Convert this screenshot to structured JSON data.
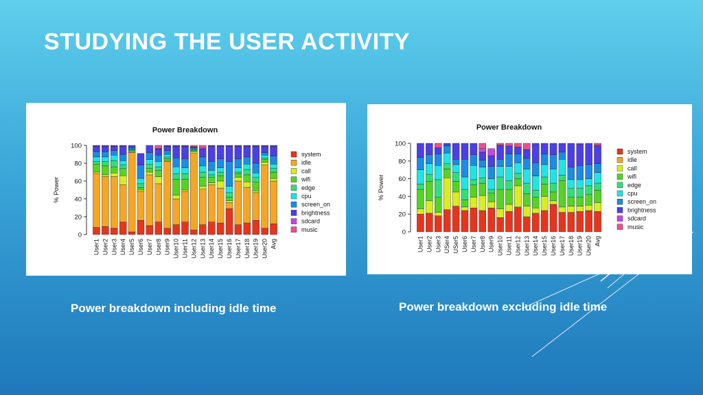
{
  "slide": {
    "title": "STUDYING THE USER ACTIVITY",
    "caption_left": "Power breakdown including idle time",
    "caption_right": "Power breakdown excluding idle time"
  },
  "colors": {
    "system": "#e8341c",
    "idle": "#f5a623",
    "call": "#d8ee1e",
    "wifi": "#55d424",
    "edge": "#2fe07a",
    "cpu": "#1ee6e6",
    "screen_on": "#1a8ce6",
    "brightness": "#4b3fe6",
    "sdcard": "#c445e6",
    "music": "#f04f8f"
  },
  "chart_data": [
    {
      "type": "bar",
      "stacked": true,
      "title": "Power Breakdown",
      "xlabel": "",
      "ylabel": "% Power",
      "ylim": [
        0,
        100
      ],
      "yticks": [
        0,
        20,
        40,
        60,
        80,
        100
      ],
      "categories": [
        "User1",
        "User2",
        "User3",
        "User4",
        "User5",
        "User6",
        "User7",
        "User8",
        "User9",
        "User10",
        "User11",
        "User12",
        "User13",
        "User14",
        "User15",
        "User16",
        "User17",
        "User18",
        "User19",
        "User20",
        "Avg"
      ],
      "legend": [
        "system",
        "idle",
        "call",
        "wifi",
        "edge",
        "cpu",
        "screen_on",
        "brightness",
        "sdcard",
        "music"
      ],
      "series": [
        {
          "name": "system",
          "values": [
            8,
            9,
            7,
            14,
            3,
            16,
            10,
            14,
            7,
            11,
            14,
            5,
            11,
            14,
            13,
            29,
            11,
            13,
            16,
            7,
            12
          ]
        },
        {
          "name": "idle",
          "values": [
            60,
            56,
            58,
            42,
            89,
            32,
            57,
            43,
            75,
            29,
            34,
            86,
            40,
            42,
            39,
            7,
            49,
            40,
            31,
            71,
            48
          ]
        },
        {
          "name": "call",
          "values": [
            2,
            2,
            4,
            10,
            1,
            2,
            3,
            8,
            1,
            4,
            2,
            2,
            3,
            2,
            8,
            2,
            4,
            6,
            2,
            3,
            3
          ]
        },
        {
          "name": "wifi",
          "values": [
            9,
            10,
            7,
            8,
            1,
            3,
            4,
            7,
            2,
            18,
            12,
            1,
            10,
            6,
            6,
            4,
            4,
            8,
            10,
            3,
            7
          ]
        },
        {
          "name": "edge",
          "values": [
            3,
            5,
            7,
            4,
            1,
            4,
            5,
            4,
            2,
            6,
            6,
            1,
            6,
            3,
            4,
            5,
            2,
            6,
            5,
            2,
            4
          ]
        },
        {
          "name": "cpu",
          "values": [
            5,
            5,
            6,
            5,
            1,
            6,
            5,
            6,
            3,
            8,
            7,
            1,
            7,
            5,
            5,
            7,
            5,
            6,
            5,
            3,
            5
          ]
        },
        {
          "name": "screen_on",
          "values": [
            6,
            6,
            5,
            7,
            1,
            15,
            8,
            7,
            4,
            10,
            10,
            1,
            10,
            10,
            10,
            28,
            10,
            8,
            11,
            3,
            9
          ]
        },
        {
          "name": "brightness",
          "values": [
            6,
            6,
            5,
            9,
            3,
            13,
            8,
            7,
            5,
            13,
            14,
            1,
            9,
            17,
            14,
            17,
            14,
            12,
            19,
            7,
            11
          ]
        },
        {
          "name": "sdcard",
          "values": [
            0.5,
            0.5,
            0.5,
            0.5,
            0,
            0,
            0,
            0.5,
            0.5,
            0.5,
            0.5,
            0.5,
            1,
            0.5,
            0.5,
            0.5,
            0.5,
            0.5,
            0.5,
            0.5,
            0.5
          ]
        },
        {
          "name": "music",
          "values": [
            0.5,
            0.5,
            0.5,
            0.5,
            0,
            0,
            0,
            3.5,
            0.5,
            0.5,
            0.5,
            1.5,
            3,
            0.5,
            0.5,
            0.5,
            0.5,
            0.5,
            0.5,
            0.5,
            0.5
          ]
        }
      ]
    },
    {
      "type": "bar",
      "stacked": true,
      "title": "Power Breakdown",
      "xlabel": "",
      "ylabel": "% Power",
      "ylim": [
        0,
        100
      ],
      "yticks": [
        0,
        20,
        40,
        60,
        80,
        100
      ],
      "categories": [
        "User1",
        "User2",
        "User3",
        "USer4",
        "USer5",
        "User6",
        "User7",
        "User8",
        "User9",
        "User10",
        "User11",
        "User12",
        "User13",
        "User14",
        "User15",
        "User16",
        "User17",
        "User18",
        "User19",
        "User20",
        "Avg"
      ],
      "legend": [
        "system",
        "idle",
        "call",
        "wifi",
        "edge",
        "cpu",
        "screen_on",
        "brightness",
        "sdcard",
        "music"
      ],
      "series": [
        {
          "name": "system",
          "values": [
            20,
            21,
            18,
            25,
            29,
            24,
            27,
            24,
            27,
            16,
            23,
            28,
            17,
            21,
            24,
            31,
            22,
            22,
            23,
            24,
            23
          ]
        },
        {
          "name": "idle",
          "values": [
            0,
            0,
            0,
            0,
            0,
            0,
            0,
            0,
            0,
            0,
            0,
            0,
            0,
            0,
            0,
            0,
            0,
            0,
            0,
            0,
            0
          ]
        },
        {
          "name": "call",
          "values": [
            6,
            14,
            4,
            36,
            16,
            4,
            12,
            17,
            7,
            10,
            8,
            24,
            12,
            6,
            16,
            4,
            6,
            7,
            6,
            6,
            10
          ]
        },
        {
          "name": "wifi",
          "values": [
            22,
            22,
            17,
            10,
            12,
            8,
            14,
            14,
            10,
            22,
            17,
            8,
            14,
            12,
            14,
            10,
            30,
            10,
            10,
            12,
            14
          ]
        },
        {
          "name": "edge",
          "values": [
            6,
            8,
            20,
            6,
            10,
            12,
            6,
            6,
            4,
            14,
            10,
            6,
            12,
            8,
            8,
            10,
            6,
            10,
            10,
            10,
            8
          ]
        },
        {
          "name": "cpu",
          "values": [
            16,
            12,
            16,
            12,
            9,
            14,
            16,
            12,
            12,
            12,
            16,
            12,
            16,
            16,
            14,
            16,
            18,
            10,
            10,
            8,
            12
          ]
        },
        {
          "name": "screen_on",
          "values": [
            14,
            10,
            13,
            8,
            6,
            20,
            12,
            8,
            14,
            8,
            14,
            10,
            12,
            15,
            12,
            16,
            8,
            14,
            16,
            16,
            10
          ]
        },
        {
          "name": "brightness",
          "values": [
            16,
            13,
            7,
            3,
            18,
            18,
            13,
            9,
            12,
            16,
            9,
            8,
            10,
            22,
            12,
            13,
            10,
            27,
            24,
            24,
            20
          ]
        },
        {
          "name": "sdcard",
          "values": [
            0,
            0,
            0,
            0,
            0,
            0,
            0,
            4,
            8,
            0,
            0,
            0,
            0,
            0,
            0,
            0,
            0,
            0,
            0,
            0,
            1
          ]
        },
        {
          "name": "music",
          "values": [
            0,
            0,
            5,
            0,
            0,
            0,
            0,
            6,
            0,
            2,
            3,
            4,
            7,
            0,
            0,
            0,
            0,
            0,
            1,
            0,
            2
          ]
        }
      ]
    }
  ]
}
